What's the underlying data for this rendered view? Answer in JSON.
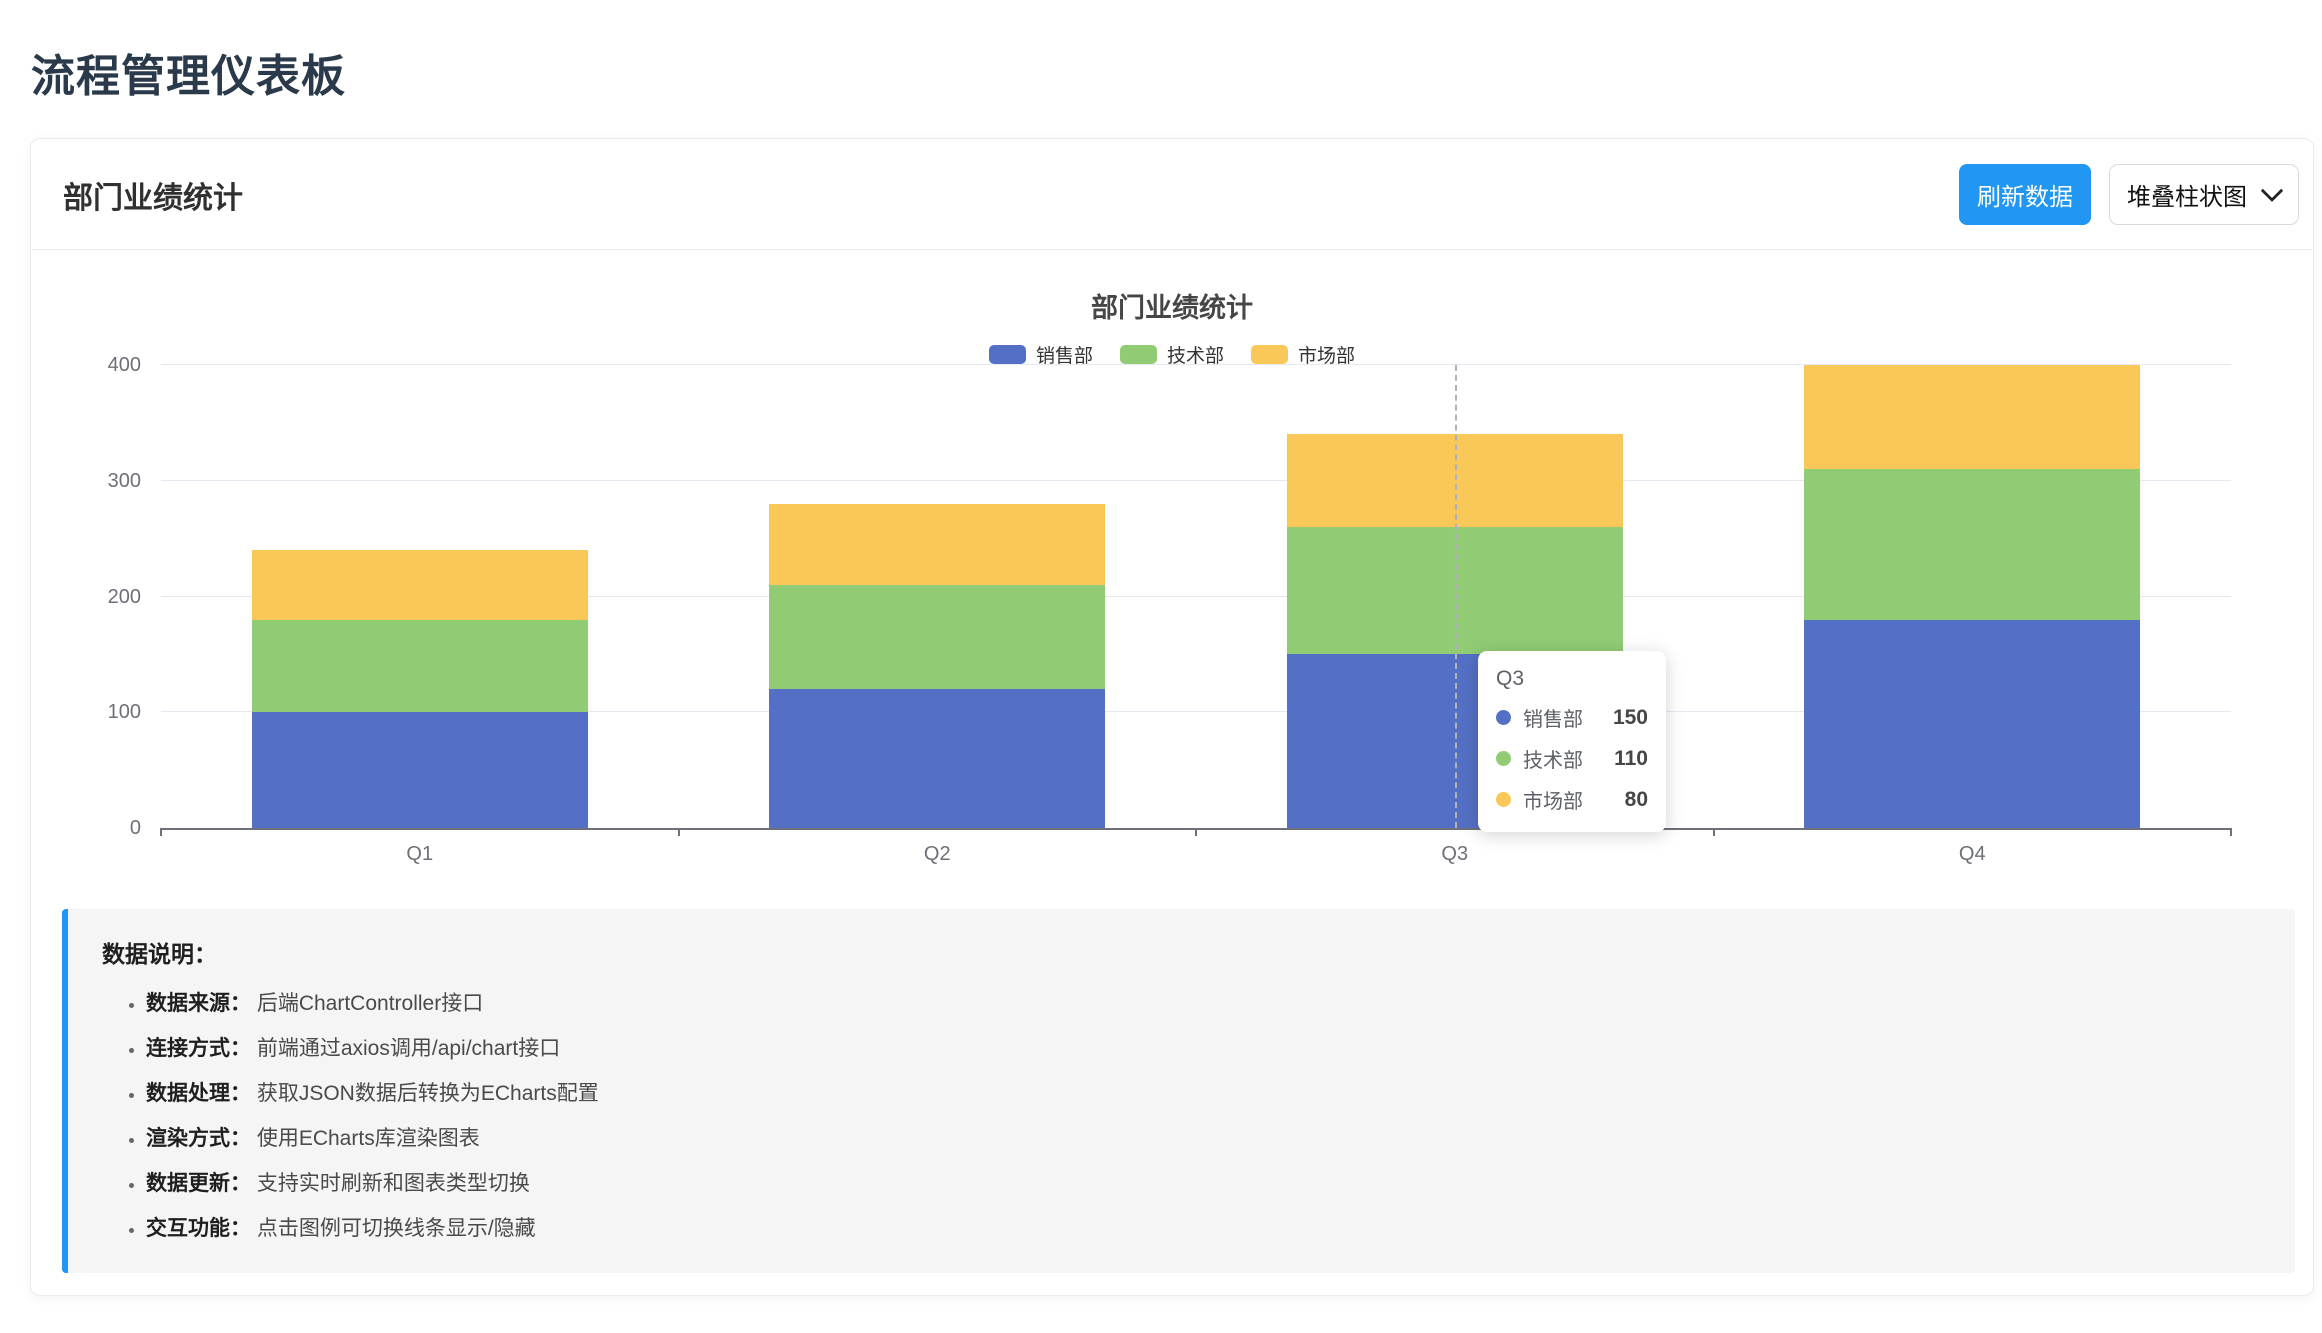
{
  "page": {
    "title": "流程管理仪表板"
  },
  "card": {
    "title": "部门业绩统计",
    "refresh_button": "刷新数据",
    "chart_type_value": "堆叠柱状图"
  },
  "chart_data": {
    "type": "bar",
    "stacked": true,
    "title": "部门业绩统计",
    "categories": [
      "Q1",
      "Q2",
      "Q3",
      "Q4"
    ],
    "series": [
      {
        "name": "销售部",
        "color": "#5470c6",
        "values": [
          100,
          120,
          150,
          180
        ]
      },
      {
        "name": "技术部",
        "color": "#91cc75",
        "values": [
          80,
          90,
          110,
          130
        ]
      },
      {
        "name": "市场部",
        "color": "#fac858",
        "values": [
          60,
          70,
          80,
          90
        ]
      }
    ],
    "ylim": [
      0,
      400
    ],
    "yticks": [
      0,
      100,
      200,
      300,
      400
    ],
    "legend_position": "top",
    "grid": true,
    "axis_pointer": "dashed-line-on-Q3"
  },
  "tooltip": {
    "category": "Q3",
    "category_index": 2,
    "rows": [
      {
        "name": "销售部",
        "color": "#5470c6",
        "value": "150"
      },
      {
        "name": "技术部",
        "color": "#91cc75",
        "value": "110"
      },
      {
        "name": "市场部",
        "color": "#fac858",
        "value": "80"
      }
    ]
  },
  "notes": {
    "heading": "数据说明：",
    "items": [
      {
        "label": "数据来源：",
        "text": "后端ChartController接口"
      },
      {
        "label": "连接方式：",
        "text": "前端通过axios调用/api/chart接口"
      },
      {
        "label": "数据处理：",
        "text": "获取JSON数据后转换为ECharts配置"
      },
      {
        "label": "渲染方式：",
        "text": "使用ECharts库渲染图表"
      },
      {
        "label": "数据更新：",
        "text": "支持实时刷新和图表类型切换"
      },
      {
        "label": "交互功能：",
        "text": "点击图例可切换线条显示/隐藏"
      }
    ]
  },
  "colors": {
    "accent": "#2196f3",
    "axis_label": "#6e7079",
    "gridline": "#e4e9f2",
    "notes_background": "#f5f5f5"
  }
}
